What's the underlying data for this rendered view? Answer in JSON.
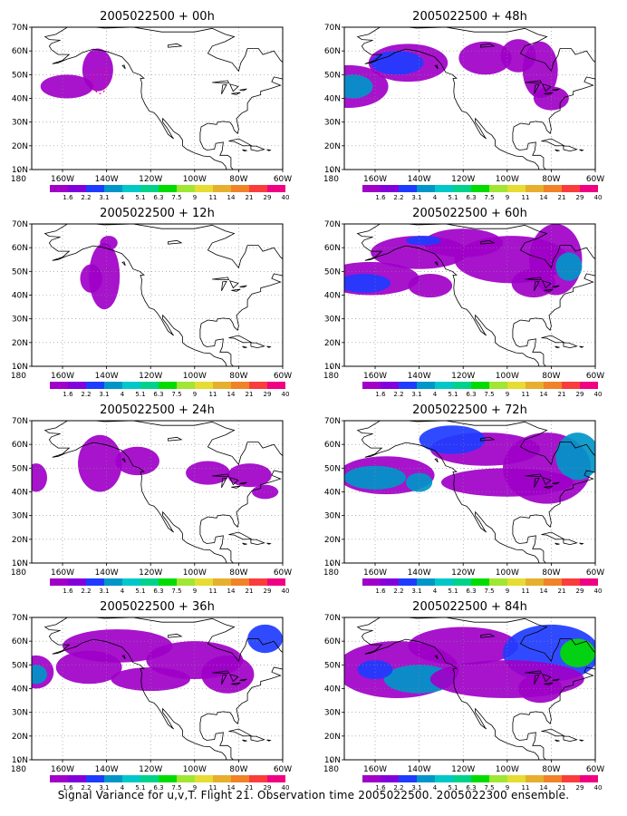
{
  "panels": [
    {
      "title": "2005022500 + 00h"
    },
    {
      "title": "2005022500 + 48h"
    },
    {
      "title": "2005022500 + 12h"
    },
    {
      "title": "2005022500 + 60h"
    },
    {
      "title": "2005022500 + 24h"
    },
    {
      "title": "2005022500 + 72h"
    },
    {
      "title": "2005022500 + 36h"
    },
    {
      "title": "2005022500 + 84h"
    }
  ],
  "axes": {
    "lat_ticks": [
      "70N",
      "60N",
      "50N",
      "40N",
      "30N",
      "20N",
      "10N"
    ],
    "lon_ticks": [
      "180",
      "160W",
      "140W",
      "120W",
      "100W",
      "80W",
      "60W"
    ],
    "lat_range": [
      10,
      70
    ],
    "lon_range": [
      -174,
      -60
    ]
  },
  "colorbar": {
    "labels": [
      "1.6",
      "2.2",
      "3.1",
      "4",
      "5.1",
      "6.3",
      "7.5",
      "9",
      "11",
      "14",
      "21",
      "29",
      "40"
    ],
    "colors": [
      "#a000c8",
      "#8200dc",
      "#1e3cff",
      "#0096c8",
      "#00c8c8",
      "#00d28c",
      "#00dc00",
      "#a0e632",
      "#e6dc32",
      "#e6af2d",
      "#f08228",
      "#fa3c3c",
      "#f00082"
    ]
  },
  "caption": "Signal Variance for u,v,T. Flight 21. Observation time 2005022500. 2005022300 ensemble."
}
